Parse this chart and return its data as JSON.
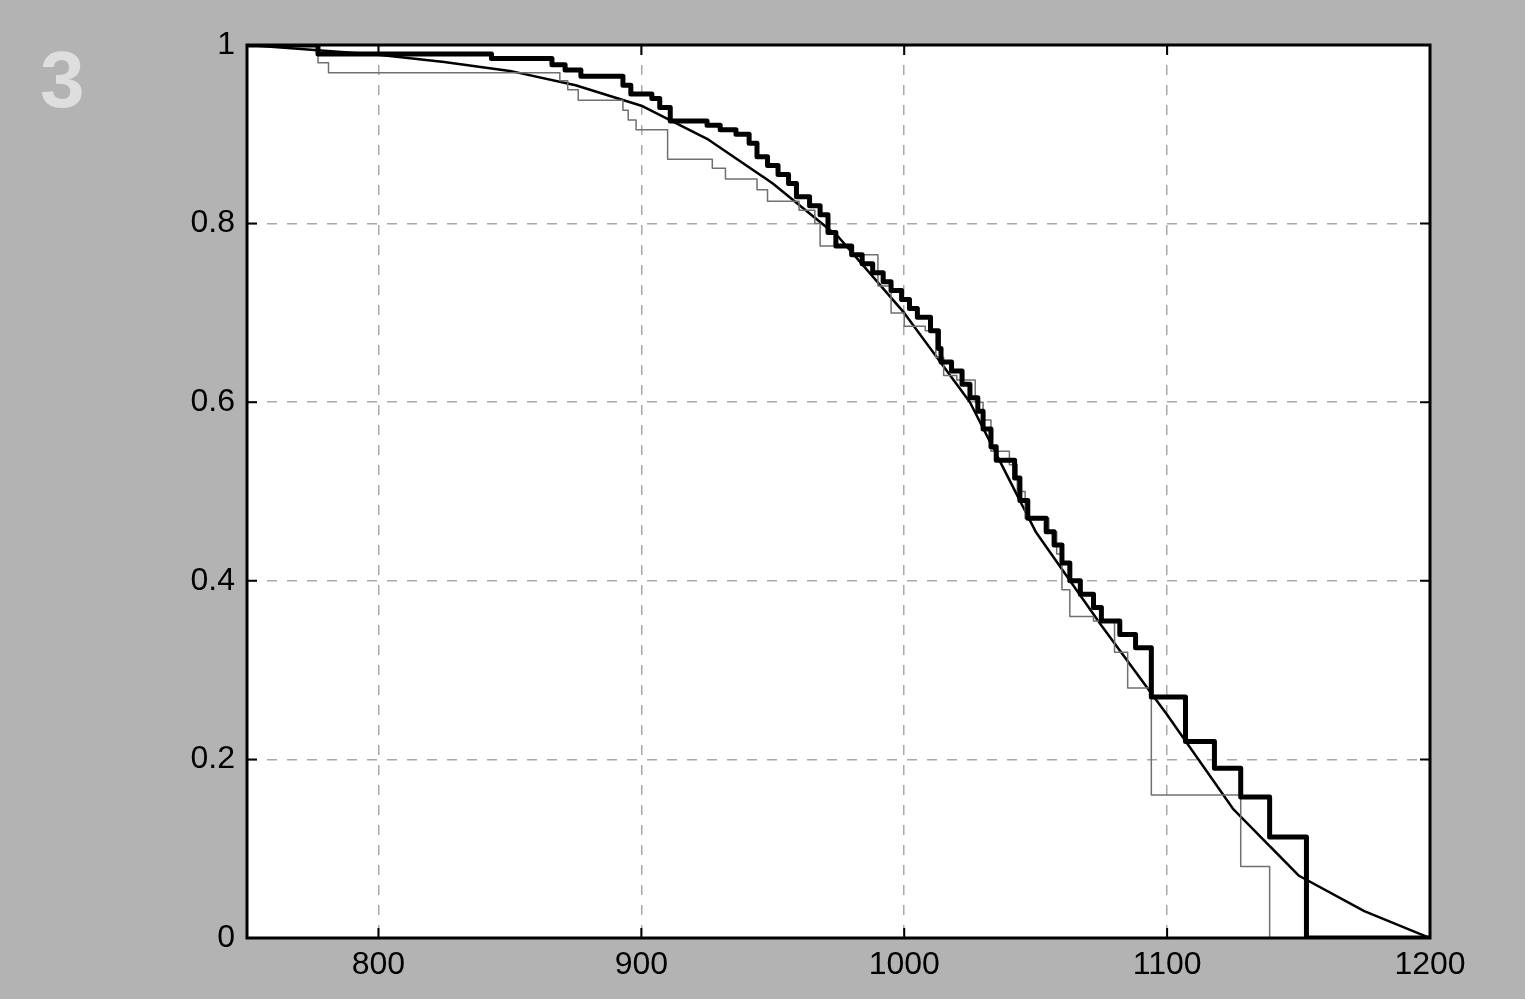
{
  "chart_data": {
    "type": "line",
    "annotations": [
      "3"
    ],
    "xlim": [
      750,
      1200
    ],
    "xticks": [
      800,
      900,
      1000,
      1100,
      1200
    ],
    "ylim": [
      0,
      1
    ],
    "yticks": [
      0,
      0.2,
      0.4,
      0.6,
      0.8,
      1
    ],
    "grid": true,
    "legend": false,
    "marker": "none",
    "series": [
      {
        "type": "step",
        "color": "#000000",
        "x": [
          750,
          777,
          843,
          866,
          871,
          877,
          893,
          896,
          904,
          907,
          911,
          925,
          930,
          936,
          941,
          944,
          948,
          952,
          956,
          959,
          964,
          968,
          971,
          974,
          980,
          984,
          988,
          992,
          995,
          999,
          1002,
          1005,
          1010,
          1013,
          1014,
          1018,
          1022,
          1025,
          1028,
          1030,
          1033,
          1035,
          1042,
          1044,
          1047,
          1054,
          1057,
          1060,
          1063,
          1067,
          1072,
          1075,
          1082,
          1088,
          1094,
          1107,
          1118,
          1128,
          1139,
          1153,
          1200
        ],
        "values": [
          1,
          0.99,
          0.985,
          0.978,
          0.972,
          0.965,
          0.955,
          0.945,
          0.94,
          0.93,
          0.915,
          0.91,
          0.905,
          0.9,
          0.89,
          0.875,
          0.865,
          0.855,
          0.845,
          0.83,
          0.82,
          0.81,
          0.79,
          0.775,
          0.765,
          0.755,
          0.745,
          0.735,
          0.725,
          0.715,
          0.705,
          0.695,
          0.68,
          0.66,
          0.645,
          0.635,
          0.62,
          0.605,
          0.59,
          0.57,
          0.55,
          0.535,
          0.515,
          0.49,
          0.47,
          0.455,
          0.44,
          0.42,
          0.4,
          0.385,
          0.37,
          0.355,
          0.34,
          0.325,
          0.27,
          0.22,
          0.19,
          0.158,
          0.113,
          0,
          0
        ]
      },
      {
        "type": "step",
        "color": "#707070",
        "x": [
          750,
          777,
          781,
          869,
          872,
          876,
          893,
          895,
          898,
          910,
          927,
          932,
          944,
          948,
          960,
          966,
          968,
          980,
          990,
          995,
          1000,
          1008,
          1012,
          1015,
          1020,
          1027,
          1030,
          1033,
          1040,
          1043,
          1046,
          1055,
          1058,
          1060,
          1063,
          1072,
          1080,
          1085,
          1094,
          1128,
          1139
        ],
        "values": [
          1,
          0.98,
          0.969,
          0.96,
          0.95,
          0.938,
          0.927,
          0.916,
          0.905,
          0.872,
          0.862,
          0.85,
          0.838,
          0.825,
          0.815,
          0.8,
          0.775,
          0.765,
          0.73,
          0.7,
          0.685,
          0.68,
          0.65,
          0.63,
          0.625,
          0.6,
          0.58,
          0.545,
          0.53,
          0.5,
          0.47,
          0.455,
          0.43,
          0.39,
          0.36,
          0.355,
          0.32,
          0.28,
          0.16,
          0.08,
          0
        ]
      },
      {
        "type": "line",
        "color": "#000000",
        "x": [
          750,
          800,
          825,
          850,
          875,
          900,
          925,
          950,
          975,
          1000,
          1025,
          1050,
          1075,
          1100,
          1125,
          1150,
          1175,
          1200
        ],
        "values": [
          1,
          0.989,
          0.981,
          0.971,
          0.955,
          0.932,
          0.895,
          0.845,
          0.785,
          0.7,
          0.6,
          0.455,
          0.35,
          0.25,
          0.145,
          0.07,
          0.03,
          0
        ]
      }
    ]
  }
}
